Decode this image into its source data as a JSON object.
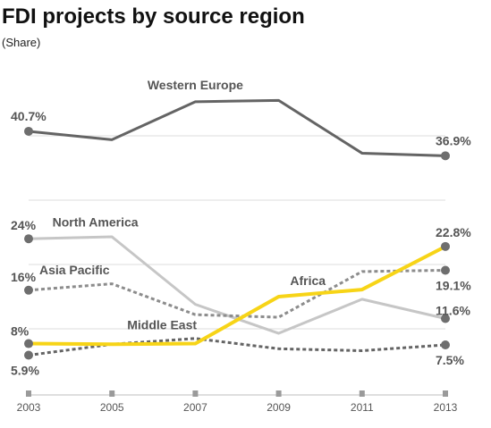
{
  "chart_data": {
    "type": "line",
    "title": "FDI projects by source region",
    "subtitle": "(Share)",
    "x": [
      "2003",
      "2005",
      "2007",
      "2009",
      "2011",
      "2013"
    ],
    "ylim": [
      0,
      50
    ],
    "grid": true,
    "series": [
      {
        "name": "Western Europe",
        "values": [
          40.7,
          39.4,
          45.3,
          45.5,
          37.3,
          36.9
        ],
        "color": "#646464",
        "dash": "solid"
      },
      {
        "name": "North America",
        "values": [
          24.0,
          24.3,
          13.8,
          9.3,
          14.6,
          11.6
        ],
        "color": "#c6c6c6",
        "dash": "solid"
      },
      {
        "name": "Asia Pacific",
        "values": [
          16.0,
          17.0,
          12.2,
          11.8,
          18.9,
          19.1
        ],
        "color": "#8c8c8c",
        "dash": "dotted"
      },
      {
        "name": "Middle East",
        "values": [
          5.9,
          7.6,
          8.5,
          6.9,
          6.6,
          7.5
        ],
        "color": "#646464",
        "dash": "dotted"
      },
      {
        "name": "Africa",
        "values": [
          7.7,
          7.6,
          7.7,
          15.0,
          16.1,
          22.8
        ],
        "color": "#f7d417",
        "dash": "solid"
      }
    ],
    "value_labels": [
      {
        "text": "40.7%",
        "series": 0,
        "point": 0
      },
      {
        "text": "36.9%",
        "series": 0,
        "point": 5
      },
      {
        "text": "24%",
        "series": 1,
        "point": 0
      },
      {
        "text": "11.6%",
        "series": 1,
        "point": 5
      },
      {
        "text": "16%",
        "series": 2,
        "point": 0
      },
      {
        "text": "19.1%",
        "series": 2,
        "point": 5
      },
      {
        "text": "5.9%",
        "series": 3,
        "point": 0
      },
      {
        "text": "7.5%",
        "series": 3,
        "point": 5
      },
      {
        "text": "8%",
        "series": 4,
        "point": 0
      },
      {
        "text": "22.8%",
        "series": 4,
        "point": 5
      }
    ]
  }
}
